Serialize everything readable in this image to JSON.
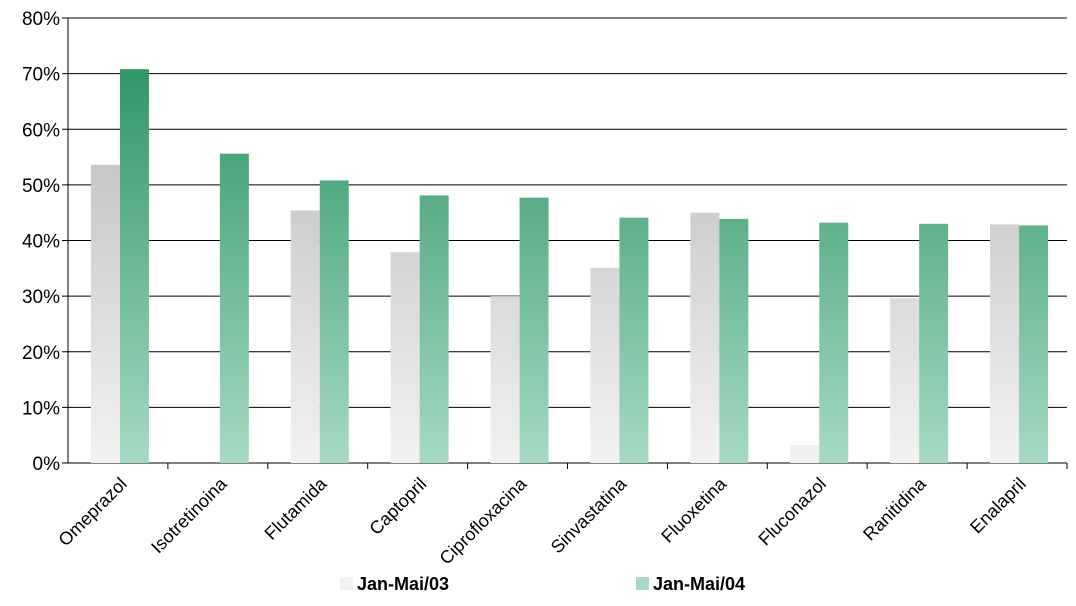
{
  "chart_data": {
    "type": "bar",
    "categories": [
      "Omeprazol",
      "Isotretinoina",
      "Flutamida",
      "Captopril",
      "Ciprofloxacina",
      "Sinvastatina",
      "Fluoxetina",
      "Fluconazol",
      "Ranitidina",
      "Enalapril"
    ],
    "series": [
      {
        "name": "Jan-Mai/03",
        "values": [
          53.6,
          0,
          45.4,
          37.9,
          30.0,
          35.1,
          45.0,
          3.2,
          29.6,
          42.9
        ],
        "color_top": "#b8b8b8",
        "color_bottom": "#f2f2f2"
      },
      {
        "name": "Jan-Mai/04",
        "values": [
          70.8,
          55.6,
          50.8,
          48.1,
          47.7,
          44.1,
          43.9,
          43.2,
          43.0,
          42.7
        ],
        "color_top": "#2e9565",
        "color_bottom": "#a6d9c3"
      }
    ],
    "y_ticks": [
      "0%",
      "10%",
      "20%",
      "30%",
      "40%",
      "50%",
      "60%",
      "70%",
      "80%"
    ],
    "ylim": [
      0,
      80
    ],
    "y_unit": "%",
    "grid": true,
    "legend_position": "bottom",
    "title": "",
    "xlabel": "",
    "ylabel": ""
  }
}
